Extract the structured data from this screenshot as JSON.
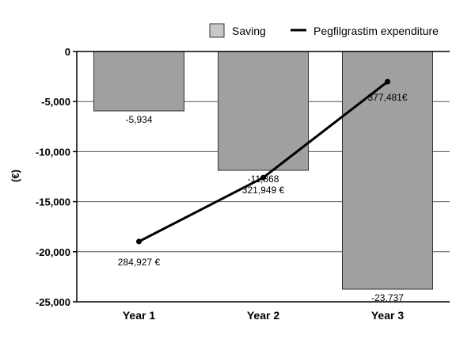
{
  "chart_data": {
    "type": "bar",
    "categories": [
      "Year 1",
      "Year 2",
      "Year 3"
    ],
    "ylabel": "(€)",
    "ylim": [
      -25000,
      0
    ],
    "yticks": [
      0,
      -5000,
      -10000,
      -15000,
      -20000,
      -25000
    ],
    "ytick_labels": [
      "0",
      "-5,000",
      "-10,000",
      "-15,000",
      "-20,000",
      "-25,000"
    ],
    "grid": true,
    "legend_position": "top-right",
    "series": [
      {
        "name": "Saving",
        "type": "bar",
        "color": "#a0a0a0",
        "values": [
          -5934,
          -11868,
          -23737
        ],
        "labels": [
          "-5,934",
          "-11,868",
          "-23,737"
        ]
      },
      {
        "name": "Pegfilgrastim expenditure",
        "type": "line",
        "color": "#000000",
        "values": [
          284927,
          321949,
          377481
        ],
        "labels": [
          "284,927 €",
          "321,949 €",
          "377,481€"
        ]
      }
    ]
  }
}
